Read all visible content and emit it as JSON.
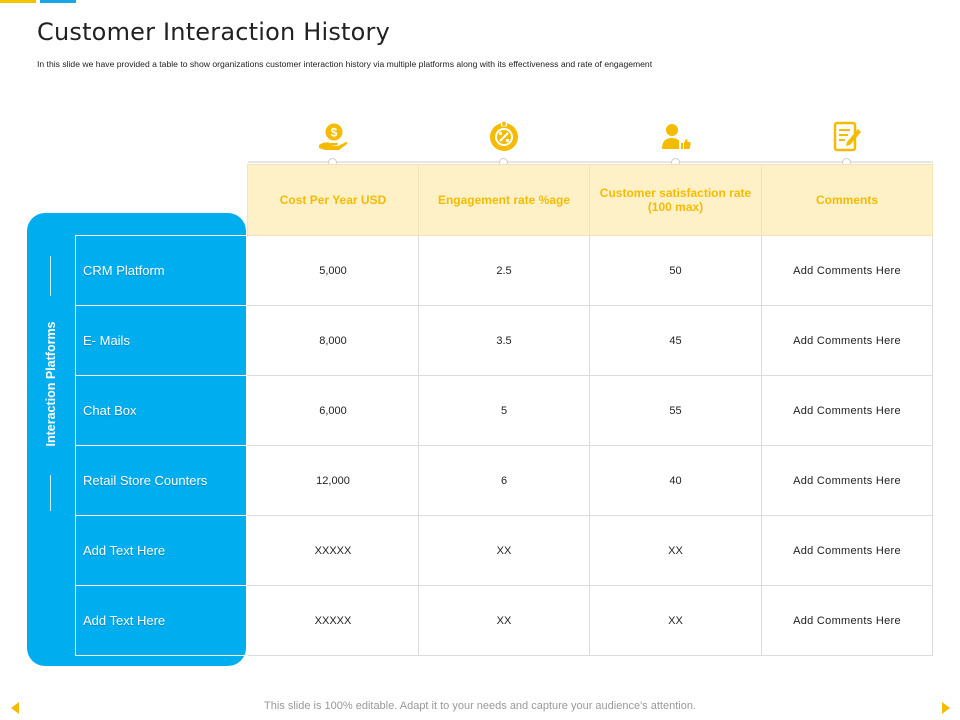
{
  "slide": {
    "title": "Customer Interaction History",
    "subtitle": "In this slide we have provided a table to show organizations customer interaction history via multiple platforms along with its effectiveness and rate of engagement",
    "footer": "This slide is 100% editable. Adapt it to your needs and capture your audience's attention."
  },
  "colors": {
    "accent_blue": "#00aeef",
    "accent_yellow": "#f5bb00",
    "header_bg": "#fef1c8"
  },
  "icons": [
    "money-hand-icon",
    "percent-badge-icon",
    "user-thumbs-up-icon",
    "document-edit-icon"
  ],
  "table": {
    "side_label": "Interaction Platforms",
    "headers": [
      "Cost Per Year USD",
      "Engagement rate %age",
      "Customer satisfaction rate  (100 max)",
      "Comments"
    ],
    "rows": [
      {
        "label": "CRM Platform",
        "cost": "5,000",
        "engagement": "2.5",
        "satisfaction": "50",
        "comment": "Add Comments  Here"
      },
      {
        "label": "E- Mails",
        "cost": "8,000",
        "engagement": "3.5",
        "satisfaction": "45",
        "comment": "Add Comments  Here"
      },
      {
        "label": "Chat Box",
        "cost": "6,000",
        "engagement": "5",
        "satisfaction": "55",
        "comment": "Add Comments  Here"
      },
      {
        "label": "Retail Store Counters",
        "cost": "12,000",
        "engagement": "6",
        "satisfaction": "40",
        "comment": "Add Comments  Here"
      },
      {
        "label": "Add Text Here",
        "cost": "XXXXX",
        "engagement": "XX",
        "satisfaction": "XX",
        "comment": "Add Comments  Here"
      },
      {
        "label": "Add Text Here",
        "cost": "XXXXX",
        "engagement": "XX",
        "satisfaction": "XX",
        "comment": "Add Comments  Here"
      }
    ]
  }
}
